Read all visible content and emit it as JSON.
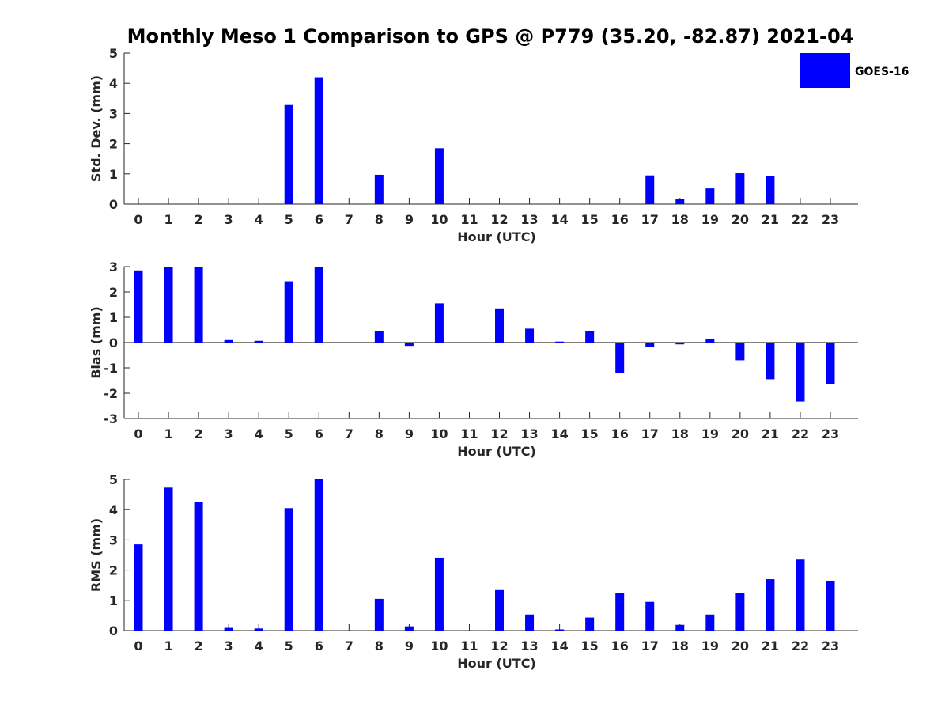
{
  "figure_title": "Monthly Meso 1 Comparison to GPS @ P779 (35.20, -82.87) 2021-04",
  "legend": {
    "label": "GOES-16",
    "color": "#0000ff"
  },
  "chart_data": [
    {
      "type": "bar",
      "ylabel": "Std. Dev. (mm)",
      "xlabel": "Hour (UTC)",
      "ylim": [
        0,
        5
      ],
      "yticks": [
        0,
        1,
        2,
        3,
        4,
        5
      ],
      "categories": [
        "0",
        "1",
        "2",
        "3",
        "4",
        "5",
        "6",
        "7",
        "8",
        "9",
        "10",
        "11",
        "12",
        "13",
        "14",
        "15",
        "16",
        "17",
        "18",
        "19",
        "20",
        "21",
        "22",
        "23"
      ],
      "series": [
        {
          "name": "GOES-16",
          "color": "#0000ff",
          "values": [
            0,
            0,
            0,
            0,
            0,
            3.28,
            4.2,
            0,
            0.97,
            0,
            1.85,
            0,
            0,
            0,
            0,
            0,
            0,
            0.95,
            0.16,
            0.52,
            1.02,
            0.92,
            0,
            0
          ]
        }
      ],
      "legend_position": "top-right"
    },
    {
      "type": "bar",
      "ylabel": "Bias (mm)",
      "xlabel": "Hour (UTC)",
      "ylim": [
        -3,
        3
      ],
      "yticks": [
        -3,
        -2,
        -1,
        0,
        1,
        2,
        3
      ],
      "categories": [
        "0",
        "1",
        "2",
        "3",
        "4",
        "5",
        "6",
        "7",
        "8",
        "9",
        "10",
        "11",
        "12",
        "13",
        "14",
        "15",
        "16",
        "17",
        "18",
        "19",
        "20",
        "21",
        "22",
        "23"
      ],
      "series": [
        {
          "name": "GOES-16",
          "color": "#0000ff",
          "values": [
            2.85,
            3.0,
            3.0,
            0.1,
            0.07,
            2.42,
            3.0,
            0,
            0.45,
            -0.13,
            1.55,
            0,
            1.35,
            0.55,
            0.04,
            0.44,
            -1.22,
            -0.17,
            -0.07,
            0.13,
            -0.7,
            -1.45,
            -2.33,
            -1.65
          ]
        }
      ]
    },
    {
      "type": "bar",
      "ylabel": "RMS (mm)",
      "xlabel": "Hour (UTC)",
      "ylim": [
        0,
        5
      ],
      "yticks": [
        0,
        1,
        2,
        3,
        4,
        5
      ],
      "categories": [
        "0",
        "1",
        "2",
        "3",
        "4",
        "5",
        "6",
        "7",
        "8",
        "9",
        "10",
        "11",
        "12",
        "13",
        "14",
        "15",
        "16",
        "17",
        "18",
        "19",
        "20",
        "21",
        "22",
        "23"
      ],
      "series": [
        {
          "name": "GOES-16",
          "color": "#0000ff",
          "values": [
            2.85,
            4.73,
            4.25,
            0.09,
            0.07,
            4.05,
            5.0,
            0,
            1.05,
            0.14,
            2.41,
            0,
            1.34,
            0.53,
            0.04,
            0.43,
            1.24,
            0.95,
            0.19,
            0.53,
            1.23,
            1.7,
            2.35,
            1.65
          ]
        }
      ]
    }
  ]
}
